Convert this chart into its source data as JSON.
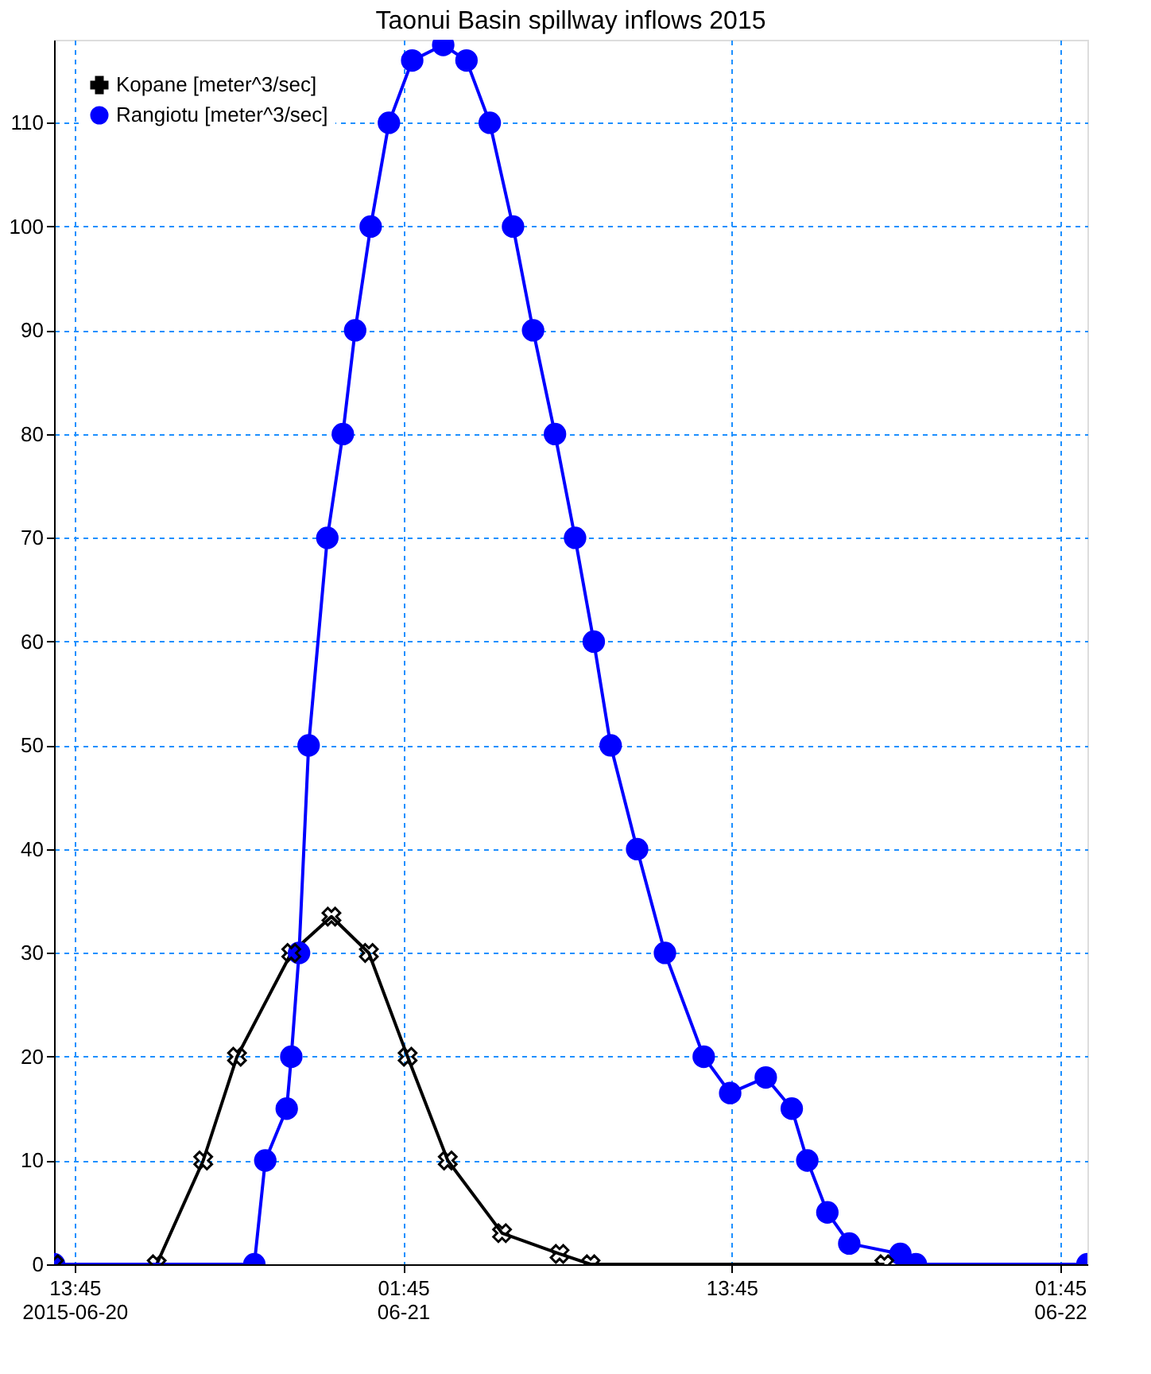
{
  "chart_data": {
    "type": "line",
    "title": "Taonui Basin spillway inflows 2015",
    "xlim": [
      "2015-06-20T13:00",
      "2015-06-22T02:45"
    ],
    "xticks": [
      {
        "value": "2015-06-20T13:45",
        "label": "13:45\n2015-06-20"
      },
      {
        "value": "2015-06-21T01:45",
        "label": "01:45\n06-21"
      },
      {
        "value": "2015-06-21T13:45",
        "label": "13:45"
      },
      {
        "value": "2015-06-22T01:45",
        "label": "01:45\n06-22"
      }
    ],
    "ylim": [
      0,
      118
    ],
    "yticks": [
      0,
      10,
      20,
      30,
      40,
      50,
      60,
      70,
      80,
      90,
      100,
      110
    ],
    "grid": true,
    "legend": "top left",
    "series": [
      {
        "name": "Kopane [meter^3/sec]",
        "color": "#000000",
        "marker": "cross",
        "x": [
          "2015-06-20T13:00",
          "2015-06-20T16:45",
          "2015-06-20T18:27",
          "2015-06-20T19:41",
          "2015-06-20T21:40",
          "2015-06-20T23:08",
          "2015-06-21T00:30",
          "2015-06-21T01:55",
          "2015-06-21T03:23",
          "2015-06-21T05:22",
          "2015-06-21T07:28",
          "2015-06-21T08:36",
          "2015-06-21T19:20"
        ],
        "values": [
          0,
          0,
          10,
          20,
          30,
          33.5,
          30,
          20,
          10,
          3,
          1,
          0,
          0
        ]
      },
      {
        "name": "Rangiotu [meter^3/sec]",
        "color": "#0000ff",
        "marker": "circle",
        "x": [
          "2015-06-20T13:00",
          "2015-06-20T20:19",
          "2015-06-20T20:43",
          "2015-06-20T21:30",
          "2015-06-20T21:40",
          "2015-06-20T21:57",
          "2015-06-20T22:18",
          "2015-06-20T22:59",
          "2015-06-20T23:33",
          "2015-06-21T00:00",
          "2015-06-21T00:34",
          "2015-06-21T01:14",
          "2015-06-21T02:05",
          "2015-06-21T03:13",
          "2015-06-21T04:04",
          "2015-06-21T04:55",
          "2015-06-21T05:46",
          "2015-06-21T06:30",
          "2015-06-21T07:18",
          "2015-06-21T08:02",
          "2015-06-21T08:43",
          "2015-06-21T09:20",
          "2015-06-21T10:18",
          "2015-06-21T11:19",
          "2015-06-21T12:44",
          "2015-06-21T13:42",
          "2015-06-21T15:00",
          "2015-06-21T15:57",
          "2015-06-21T16:31",
          "2015-06-21T17:15",
          "2015-06-21T18:03",
          "2015-06-21T19:55",
          "2015-06-21T20:29",
          "2015-06-22T02:45"
        ],
        "values": [
          0,
          0,
          10,
          15,
          20,
          30,
          50,
          70,
          80,
          90,
          100,
          110,
          116,
          117.5,
          116,
          110,
          100,
          90,
          80,
          70,
          60,
          50,
          40,
          30,
          20,
          16.5,
          18,
          15,
          10,
          5,
          2,
          1,
          0,
          0
        ]
      }
    ]
  }
}
